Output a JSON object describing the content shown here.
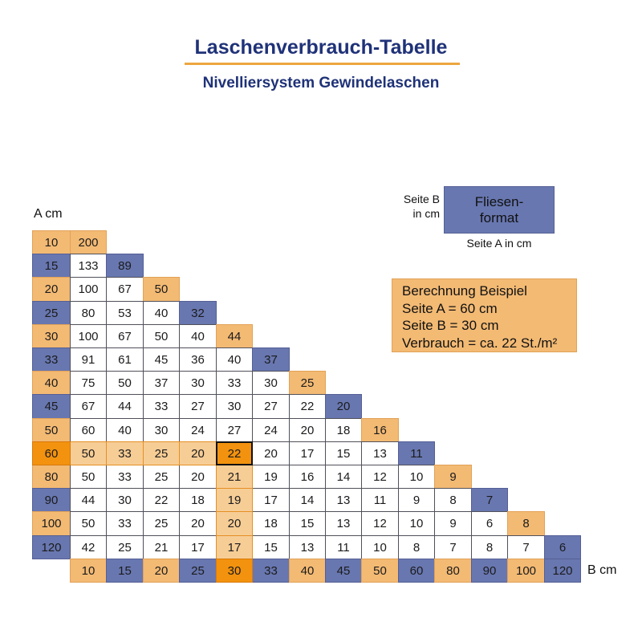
{
  "header": {
    "title": "Laschenverbrauch-Tabelle",
    "subtitle": "Nivelliersystem Gewindelaschen"
  },
  "colors": {
    "navy": "#1f3278",
    "underline": "#eda640",
    "orange": "#f3ba74",
    "orange_border": "#e2a257",
    "blue": "#6877b0",
    "blue_border": "#555f96",
    "hl_light": "#f7cd96",
    "hl_light_border": "#e49023",
    "hl_dark": "#f2920e",
    "hl_dark_border": "#d97a0c",
    "target_border": "#111111",
    "white_cell_border": "#50505a",
    "cell_text": "#1b1b1b"
  },
  "legend": {
    "side_b_line1": "Seite B",
    "side_b_line2": "in cm",
    "tile_box_line1": "Fliesen-",
    "tile_box_line2": "format",
    "side_a_label": "Seite A in cm"
  },
  "example": {
    "heading": "Berechnung Beispiel",
    "line_a": "Seite A = 60 cm",
    "line_b": "Seite B = 30 cm",
    "line_result": "Verbrauch = ca. 22 St./m²"
  },
  "axis": {
    "a_label": "A cm",
    "b_label": "B cm"
  },
  "chart_data": {
    "type": "table",
    "title": "Laschenverbrauch-Tabelle",
    "subtitle": "Nivelliersystem Gewindelaschen",
    "row_axis_label": "A cm",
    "col_axis_label": "B cm",
    "b_values": [
      10,
      15,
      20,
      25,
      30,
      33,
      40,
      45,
      50,
      60,
      80,
      90,
      100,
      120
    ],
    "rows": [
      {
        "a": 10,
        "values": [
          200
        ]
      },
      {
        "a": 15,
        "values": [
          133,
          89
        ]
      },
      {
        "a": 20,
        "values": [
          100,
          67,
          50
        ]
      },
      {
        "a": 25,
        "values": [
          80,
          53,
          40,
          32
        ]
      },
      {
        "a": 30,
        "values": [
          100,
          67,
          50,
          40,
          44
        ]
      },
      {
        "a": 33,
        "values": [
          91,
          61,
          45,
          36,
          40,
          37
        ]
      },
      {
        "a": 40,
        "values": [
          75,
          50,
          37,
          30,
          33,
          30,
          25
        ]
      },
      {
        "a": 45,
        "values": [
          67,
          44,
          33,
          27,
          30,
          27,
          22,
          20
        ]
      },
      {
        "a": 50,
        "values": [
          60,
          40,
          30,
          24,
          27,
          24,
          20,
          18,
          16
        ]
      },
      {
        "a": 60,
        "values": [
          50,
          33,
          25,
          20,
          22,
          20,
          17,
          15,
          13,
          11
        ]
      },
      {
        "a": 80,
        "values": [
          50,
          33,
          25,
          20,
          21,
          19,
          16,
          14,
          12,
          10,
          9
        ]
      },
      {
        "a": 90,
        "values": [
          44,
          30,
          22,
          18,
          19,
          17,
          14,
          13,
          11,
          9,
          8,
          7
        ]
      },
      {
        "a": 100,
        "values": [
          50,
          33,
          25,
          20,
          20,
          18,
          15,
          13,
          12,
          10,
          9,
          6,
          8
        ]
      },
      {
        "a": 120,
        "values": [
          42,
          25,
          21,
          17,
          17,
          15,
          13,
          11,
          10,
          8,
          7,
          8,
          7,
          6
        ]
      }
    ],
    "highlight": {
      "seite_a": 60,
      "seite_b": 30,
      "value": 22
    }
  }
}
